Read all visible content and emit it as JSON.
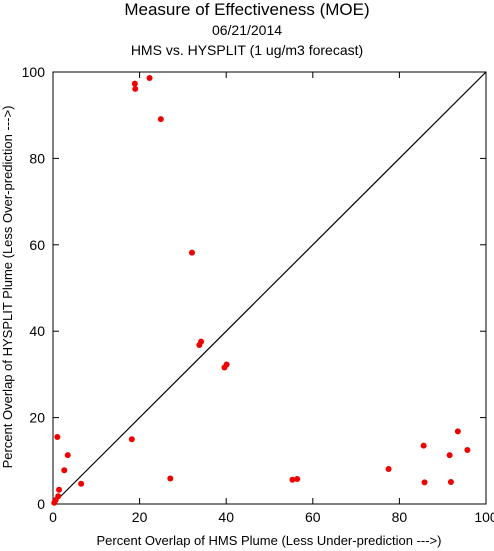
{
  "chart_data": {
    "type": "scatter",
    "title": "Measure of Effectiveness (MOE)",
    "subtitle": "06/21/2014",
    "subtitle2": "HMS vs. HYSPLIT  (1 ug/m3 forecast)",
    "xlabel": "Percent Overlap of HMS Plume (Less Under-prediction --->)",
    "ylabel": "Percent Overlap of HYSPLIT Plume (Less Over-prediction --->)",
    "xlim": [
      0,
      100
    ],
    "ylim": [
      0,
      100
    ],
    "x_ticks": [
      0,
      20,
      40,
      60,
      80,
      100
    ],
    "y_ticks": [
      0,
      20,
      40,
      60,
      80,
      100
    ],
    "grid": false,
    "point_color": "#ee0000",
    "reference_line": {
      "from": [
        0,
        0
      ],
      "to": [
        100,
        100
      ],
      "color": "#000000"
    },
    "series": [
      {
        "points": [
          [
            0.3,
            0.3
          ],
          [
            0.6,
            0.9
          ],
          [
            1.0,
            15.5
          ],
          [
            1.2,
            1.8
          ],
          [
            1.4,
            3.3
          ],
          [
            2.6,
            7.8
          ],
          [
            3.4,
            11.3
          ],
          [
            6.5,
            4.7
          ],
          [
            18.2,
            15.0
          ],
          [
            18.9,
            97.3
          ],
          [
            19.0,
            96.1
          ],
          [
            22.3,
            98.6
          ],
          [
            24.9,
            89.1
          ],
          [
            27.1,
            5.9
          ],
          [
            32.1,
            58.2
          ],
          [
            33.8,
            36.8
          ],
          [
            34.2,
            37.6
          ],
          [
            39.6,
            31.6
          ],
          [
            40.1,
            32.3
          ],
          [
            55.3,
            5.6
          ],
          [
            56.4,
            5.8
          ],
          [
            77.5,
            8.1
          ],
          [
            85.6,
            13.5
          ],
          [
            85.8,
            5.0
          ],
          [
            91.6,
            11.3
          ],
          [
            91.9,
            5.1
          ],
          [
            93.5,
            16.8
          ],
          [
            95.7,
            12.5
          ]
        ]
      }
    ]
  }
}
